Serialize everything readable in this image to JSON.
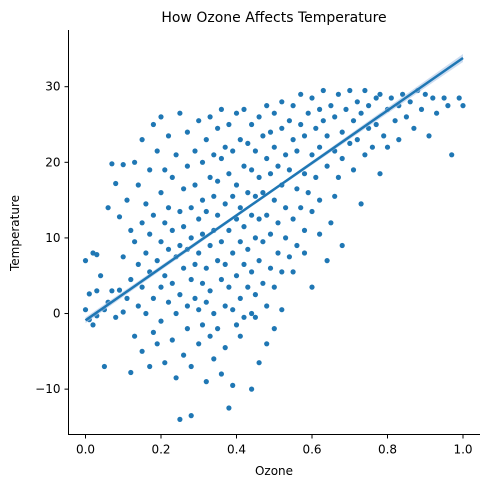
{
  "chart_data": {
    "type": "scatter",
    "title": "How Ozone Affects Temperature",
    "xlabel": "Ozone",
    "ylabel": "Temperature",
    "xlim": [
      -0.045,
      1.045
    ],
    "ylim": [
      -16,
      37.5
    ],
    "xticks": [
      0.0,
      0.2,
      0.4,
      0.6,
      0.8,
      1.0
    ],
    "xtick_labels": [
      "0.0",
      "0.2",
      "0.4",
      "0.6",
      "0.8",
      "1.0"
    ],
    "yticks": [
      -10,
      0,
      10,
      20,
      30
    ],
    "ytick_labels": [
      "−10",
      "0",
      "10",
      "20",
      "30"
    ],
    "grid": false,
    "legend": "none",
    "colors": {
      "points": "#1f77b4",
      "regression_line": "#1f77b4",
      "confidence_band": "#aec7e8"
    },
    "regression": {
      "x": [
        0.0,
        1.0
      ],
      "y": [
        -0.9,
        33.8
      ]
    },
    "points": [
      [
        0.0,
        0.5
      ],
      [
        0.0,
        7.0
      ],
      [
        0.01,
        -0.8
      ],
      [
        0.01,
        2.6
      ],
      [
        0.02,
        8.0
      ],
      [
        0.02,
        -1.5
      ],
      [
        0.03,
        7.8
      ],
      [
        0.03,
        3.0
      ],
      [
        0.03,
        -0.3
      ],
      [
        0.04,
        5.0
      ],
      [
        0.05,
        0.5
      ],
      [
        0.05,
        -7.0
      ],
      [
        0.06,
        1.5
      ],
      [
        0.06,
        14.0
      ],
      [
        0.07,
        19.8
      ],
      [
        0.07,
        3.0
      ],
      [
        0.08,
        17.2
      ],
      [
        0.08,
        -0.5
      ],
      [
        0.09,
        12.8
      ],
      [
        0.09,
        3.1
      ],
      [
        0.1,
        19.7
      ],
      [
        0.1,
        7.5
      ],
      [
        0.1,
        0.2
      ],
      [
        0.11,
        2.0
      ],
      [
        0.11,
        15.0
      ],
      [
        0.12,
        -7.8
      ],
      [
        0.12,
        4.5
      ],
      [
        0.12,
        11.0
      ],
      [
        0.13,
        20.0
      ],
      [
        0.13,
        -3.0
      ],
      [
        0.13,
        9.5
      ],
      [
        0.14,
        6.5
      ],
      [
        0.14,
        1.0
      ],
      [
        0.14,
        17.0
      ],
      [
        0.15,
        3.5
      ],
      [
        0.15,
        12.0
      ],
      [
        0.15,
        -5.0
      ],
      [
        0.15,
        23.0
      ],
      [
        0.16,
        8.0
      ],
      [
        0.16,
        0.0
      ],
      [
        0.16,
        14.5
      ],
      [
        0.17,
        -7.0
      ],
      [
        0.17,
        5.5
      ],
      [
        0.17,
        19.0
      ],
      [
        0.17,
        10.5
      ],
      [
        0.18,
        2.0
      ],
      [
        0.18,
        25.0
      ],
      [
        0.18,
        -2.5
      ],
      [
        0.18,
        13.0
      ],
      [
        0.19,
        7.0
      ],
      [
        0.19,
        21.5
      ],
      [
        0.19,
        -4.0
      ],
      [
        0.2,
        16.0
      ],
      [
        0.2,
        3.5
      ],
      [
        0.2,
        9.5
      ],
      [
        0.2,
        -1.0
      ],
      [
        0.2,
        26.0
      ],
      [
        0.21,
        12.0
      ],
      [
        0.21,
        5.0
      ],
      [
        0.21,
        19.0
      ],
      [
        0.21,
        -6.5
      ],
      [
        0.22,
        1.5
      ],
      [
        0.22,
        8.5
      ],
      [
        0.22,
        23.5
      ],
      [
        0.22,
        14.0
      ],
      [
        0.23,
        -3.5
      ],
      [
        0.23,
        11.0
      ],
      [
        0.23,
        4.0
      ],
      [
        0.23,
        18.0
      ],
      [
        0.24,
        0.0
      ],
      [
        0.24,
        7.5
      ],
      [
        0.24,
        -8.5
      ],
      [
        0.24,
        21.0
      ],
      [
        0.25,
        -14.0
      ],
      [
        0.25,
        13.5
      ],
      [
        0.25,
        2.5
      ],
      [
        0.25,
        9.0
      ],
      [
        0.25,
        26.5
      ],
      [
        0.26,
        -5.5
      ],
      [
        0.26,
        16.5
      ],
      [
        0.26,
        6.0
      ],
      [
        0.26,
        11.5
      ],
      [
        0.27,
        1.0
      ],
      [
        0.27,
        19.5
      ],
      [
        0.27,
        -2.0
      ],
      [
        0.27,
        8.5
      ],
      [
        0.27,
        24.0
      ],
      [
        0.28,
        -13.5
      ],
      [
        0.28,
        4.5
      ],
      [
        0.28,
        14.0
      ],
      [
        0.28,
        10.0
      ],
      [
        0.28,
        -7.0
      ],
      [
        0.29,
        21.5
      ],
      [
        0.29,
        2.0
      ],
      [
        0.29,
        17.0
      ],
      [
        0.29,
        6.5
      ],
      [
        0.3,
        -4.0
      ],
      [
        0.3,
        12.5
      ],
      [
        0.3,
        25.5
      ],
      [
        0.3,
        0.5
      ],
      [
        0.3,
        8.0
      ],
      [
        0.31,
        15.0
      ],
      [
        0.31,
        -1.5
      ],
      [
        0.31,
        20.0
      ],
      [
        0.31,
        4.0
      ],
      [
        0.31,
        10.5
      ],
      [
        0.32,
        -9.0
      ],
      [
        0.32,
        23.0
      ],
      [
        0.32,
        6.0
      ],
      [
        0.32,
        13.5
      ],
      [
        0.32,
        1.5
      ],
      [
        0.33,
        18.0
      ],
      [
        0.33,
        -3.0
      ],
      [
        0.33,
        9.0
      ],
      [
        0.33,
        26.0
      ],
      [
        0.33,
        3.0
      ],
      [
        0.34,
        15.5
      ],
      [
        0.34,
        -6.0
      ],
      [
        0.34,
        11.0
      ],
      [
        0.34,
        21.0
      ],
      [
        0.34,
        0.0
      ],
      [
        0.35,
        7.0
      ],
      [
        0.35,
        24.5
      ],
      [
        0.35,
        -2.0
      ],
      [
        0.35,
        13.0
      ],
      [
        0.35,
        17.5
      ],
      [
        0.36,
        4.5
      ],
      [
        0.36,
        -8.0
      ],
      [
        0.36,
        20.5
      ],
      [
        0.36,
        9.5
      ],
      [
        0.36,
        27.0
      ],
      [
        0.37,
        1.0
      ],
      [
        0.37,
        14.5
      ],
      [
        0.37,
        -4.5
      ],
      [
        0.37,
        22.0
      ],
      [
        0.37,
        6.5
      ],
      [
        0.38,
        -12.5
      ],
      [
        0.38,
        11.0
      ],
      [
        0.38,
        18.5
      ],
      [
        0.38,
        3.5
      ],
      [
        0.38,
        25.0
      ],
      [
        0.39,
        -9.5
      ],
      [
        0.39,
        8.0
      ],
      [
        0.39,
        15.5
      ],
      [
        0.39,
        0.5
      ],
      [
        0.39,
        21.5
      ],
      [
        0.4,
        -1.5
      ],
      [
        0.4,
        12.5
      ],
      [
        0.4,
        26.5
      ],
      [
        0.4,
        5.0
      ],
      [
        0.4,
        17.0
      ],
      [
        0.41,
        -3.0
      ],
      [
        0.41,
        9.5
      ],
      [
        0.41,
        23.0
      ],
      [
        0.41,
        2.0
      ],
      [
        0.41,
        14.0
      ],
      [
        0.42,
        19.5
      ],
      [
        0.42,
        6.5
      ],
      [
        0.42,
        -0.5
      ],
      [
        0.42,
        11.5
      ],
      [
        0.42,
        27.0
      ],
      [
        0.43,
        3.5
      ],
      [
        0.43,
        16.0
      ],
      [
        0.43,
        22.5
      ],
      [
        0.43,
        8.5
      ],
      [
        0.44,
        0.0
      ],
      [
        0.44,
        13.0
      ],
      [
        0.44,
        25.0
      ],
      [
        0.44,
        5.5
      ],
      [
        0.44,
        19.0
      ],
      [
        0.45,
        -0.5
      ],
      [
        0.45,
        10.0
      ],
      [
        0.45,
        21.5
      ],
      [
        0.45,
        2.5
      ],
      [
        0.45,
        15.5
      ],
      [
        0.46,
        7.0
      ],
      [
        0.46,
        26.0
      ],
      [
        0.46,
        12.5
      ],
      [
        0.46,
        18.0
      ],
      [
        0.47,
        4.0
      ],
      [
        0.47,
        23.5
      ],
      [
        0.47,
        9.5
      ],
      [
        0.47,
        16.0
      ],
      [
        0.48,
        1.0
      ],
      [
        0.48,
        20.5
      ],
      [
        0.48,
        13.0
      ],
      [
        0.48,
        27.5
      ],
      [
        0.49,
        6.0
      ],
      [
        0.49,
        18.5
      ],
      [
        0.49,
        24.0
      ],
      [
        0.49,
        10.5
      ],
      [
        0.5,
        3.5
      ],
      [
        0.5,
        22.0
      ],
      [
        0.5,
        15.0
      ],
      [
        0.5,
        26.5
      ],
      [
        0.51,
        8.0
      ],
      [
        0.51,
        19.5
      ],
      [
        0.51,
        12.0
      ],
      [
        0.52,
        24.5
      ],
      [
        0.52,
        5.5
      ],
      [
        0.52,
        17.0
      ],
      [
        0.52,
        28.0
      ],
      [
        0.53,
        21.0
      ],
      [
        0.53,
        10.0
      ],
      [
        0.53,
        14.0
      ],
      [
        0.54,
        25.5
      ],
      [
        0.54,
        7.5
      ],
      [
        0.54,
        19.0
      ],
      [
        0.55,
        23.0
      ],
      [
        0.55,
        12.5
      ],
      [
        0.55,
        27.5
      ],
      [
        0.56,
        16.5
      ],
      [
        0.56,
        21.5
      ],
      [
        0.56,
        9.0
      ],
      [
        0.57,
        25.0
      ],
      [
        0.57,
        14.0
      ],
      [
        0.57,
        29.0
      ],
      [
        0.58,
        18.5
      ],
      [
        0.58,
        23.5
      ],
      [
        0.58,
        11.0
      ],
      [
        0.59,
        26.5
      ],
      [
        0.59,
        16.0
      ],
      [
        0.6,
        21.0
      ],
      [
        0.6,
        28.5
      ],
      [
        0.6,
        13.5
      ],
      [
        0.61,
        24.5
      ],
      [
        0.61,
        18.0
      ],
      [
        0.62,
        27.0
      ],
      [
        0.62,
        22.0
      ],
      [
        0.62,
        15.0
      ],
      [
        0.63,
        25.5
      ],
      [
        0.63,
        29.5
      ],
      [
        0.64,
        19.5
      ],
      [
        0.64,
        23.5
      ],
      [
        0.65,
        27.5
      ],
      [
        0.65,
        12.0
      ],
      [
        0.66,
        21.5
      ],
      [
        0.66,
        26.0
      ],
      [
        0.67,
        18.0
      ],
      [
        0.67,
        29.0
      ],
      [
        0.68,
        24.0
      ],
      [
        0.68,
        20.5
      ],
      [
        0.69,
        27.0
      ],
      [
        0.7,
        22.5
      ],
      [
        0.7,
        29.5
      ],
      [
        0.71,
        25.5
      ],
      [
        0.71,
        19.0
      ],
      [
        0.72,
        28.0
      ],
      [
        0.72,
        23.0
      ],
      [
        0.73,
        14.5
      ],
      [
        0.73,
        26.5
      ],
      [
        0.74,
        21.0
      ],
      [
        0.74,
        29.5
      ],
      [
        0.75,
        24.5
      ],
      [
        0.75,
        27.5
      ],
      [
        0.76,
        22.0
      ],
      [
        0.77,
        28.5
      ],
      [
        0.77,
        25.0
      ],
      [
        0.78,
        18.5
      ],
      [
        0.78,
        29.0
      ],
      [
        0.79,
        23.5
      ],
      [
        0.8,
        27.0
      ],
      [
        0.8,
        22.0
      ],
      [
        0.81,
        28.5
      ],
      [
        0.82,
        25.5
      ],
      [
        0.83,
        27.5
      ],
      [
        0.83,
        23.0
      ],
      [
        0.84,
        29.0
      ],
      [
        0.85,
        26.0
      ],
      [
        0.86,
        28.0
      ],
      [
        0.87,
        24.5
      ],
      [
        0.88,
        29.5
      ],
      [
        0.89,
        27.0
      ],
      [
        0.9,
        29.0
      ],
      [
        0.91,
        23.5
      ],
      [
        0.92,
        28.5
      ],
      [
        0.93,
        26.5
      ],
      [
        0.95,
        28.5
      ],
      [
        0.96,
        27.5
      ],
      [
        0.97,
        21.0
      ],
      [
        0.99,
        28.5
      ],
      [
        1.0,
        27.5
      ],
      [
        0.55,
        5.5
      ],
      [
        0.58,
        8.0
      ],
      [
        0.6,
        3.5
      ],
      [
        0.62,
        10.5
      ],
      [
        0.64,
        7.0
      ],
      [
        0.66,
        15.5
      ],
      [
        0.68,
        9.0
      ],
      [
        0.52,
        0.5
      ],
      [
        0.5,
        -2.0
      ],
      [
        0.48,
        -4.0
      ],
      [
        0.46,
        -6.5
      ],
      [
        0.44,
        -10.0
      ]
    ]
  }
}
